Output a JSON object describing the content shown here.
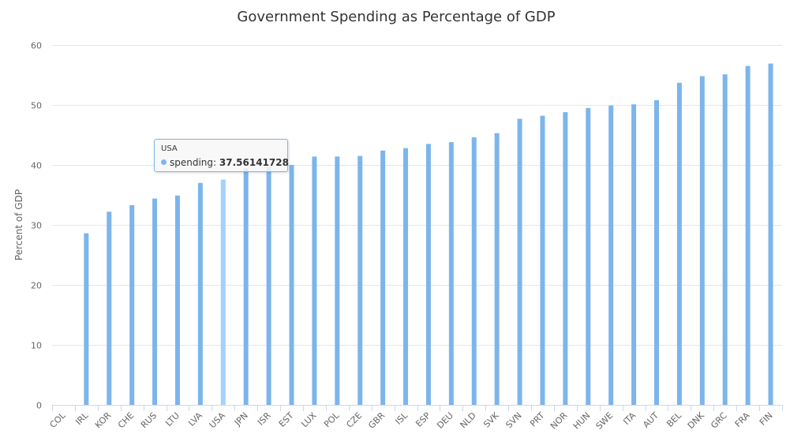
{
  "chart_data": {
    "type": "bar",
    "title": "Government Spending as Percentage of GDP",
    "xlabel": "",
    "ylabel": "Percent of GDP",
    "ylim": [
      0,
      60
    ],
    "yticks": [
      0,
      10,
      20,
      30,
      40,
      50,
      60
    ],
    "grid": true,
    "categories": [
      "COL",
      "IRL",
      "KOR",
      "CHE",
      "RUS",
      "LTU",
      "LVA",
      "USA",
      "JPN",
      "ISR",
      "EST",
      "LUX",
      "POL",
      "CZE",
      "GBR",
      "ISL",
      "ESP",
      "DEU",
      "NLD",
      "SVK",
      "SVN",
      "PRT",
      "NOR",
      "HUN",
      "SWE",
      "ITA",
      "AUT",
      "BEL",
      "DNK",
      "GRC",
      "FRA",
      "FIN"
    ],
    "series": [
      {
        "name": "spending",
        "color": "#7cb5ec",
        "values": [
          0,
          28.6,
          32.2,
          33.3,
          34.4,
          34.9,
          37.0,
          37.56141728,
          39.4,
          39.7,
          40.0,
          41.4,
          41.4,
          41.5,
          42.4,
          42.8,
          43.5,
          43.8,
          44.6,
          45.3,
          47.7,
          48.2,
          48.8,
          49.5,
          49.9,
          50.1,
          50.8,
          53.7,
          54.8,
          55.1,
          56.5,
          56.9
        ]
      }
    ],
    "tooltip": {
      "category": "USA",
      "series_name": "spending",
      "separator": ":",
      "value": "37.56141728"
    }
  }
}
